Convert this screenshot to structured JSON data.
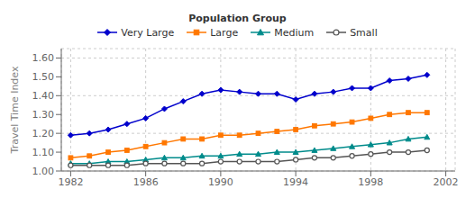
{
  "chart_data": {
    "type": "line",
    "ylabel": "Travel Time Index",
    "legend_title": "Population Group",
    "legend": "top",
    "grid": true,
    "x": [
      1982,
      1983,
      1984,
      1985,
      1986,
      1987,
      1988,
      1989,
      1990,
      1991,
      1992,
      1993,
      1994,
      1995,
      1996,
      1997,
      1998,
      1999,
      2000,
      2001
    ],
    "series": [
      {
        "name": "Very Large",
        "color": "#0000CC",
        "marker": "diamond",
        "values": [
          1.19,
          1.2,
          1.22,
          1.25,
          1.28,
          1.33,
          1.37,
          1.41,
          1.43,
          1.42,
          1.41,
          1.41,
          1.38,
          1.41,
          1.42,
          1.44,
          1.44,
          1.48,
          1.49,
          1.51
        ]
      },
      {
        "name": "Large",
        "color": "#FF7700",
        "marker": "square",
        "values": [
          1.07,
          1.08,
          1.1,
          1.11,
          1.13,
          1.15,
          1.17,
          1.17,
          1.19,
          1.19,
          1.2,
          1.21,
          1.22,
          1.24,
          1.25,
          1.26,
          1.28,
          1.3,
          1.31,
          1.31
        ]
      },
      {
        "name": "Medium",
        "color": "#008B8B",
        "marker": "triangle",
        "values": [
          1.04,
          1.04,
          1.05,
          1.05,
          1.06,
          1.07,
          1.07,
          1.08,
          1.08,
          1.09,
          1.09,
          1.1,
          1.1,
          1.11,
          1.12,
          1.13,
          1.14,
          1.15,
          1.17,
          1.18
        ]
      },
      {
        "name": "Small",
        "color": "#555555",
        "marker": "circle",
        "values": [
          1.03,
          1.03,
          1.03,
          1.03,
          1.04,
          1.04,
          1.04,
          1.04,
          1.05,
          1.05,
          1.05,
          1.05,
          1.06,
          1.07,
          1.07,
          1.08,
          1.09,
          1.1,
          1.1,
          1.11
        ]
      }
    ],
    "xlim": [
      1981.5,
      2002.5
    ],
    "xticks": [
      1982,
      1986,
      1990,
      1994,
      1998,
      2002
    ],
    "ylim": [
      1.0,
      1.65
    ],
    "yticks": [
      {
        "value": 1.0,
        "label": "1.00"
      },
      {
        "value": 1.1,
        "label": "1.10"
      },
      {
        "value": 1.2,
        "label": "1.20"
      },
      {
        "value": 1.3,
        "label": "1.30"
      },
      {
        "value": 1.4,
        "label": "1.40"
      },
      {
        "value": 1.5,
        "label": "1.50"
      },
      {
        "value": 1.6,
        "label": "1.60"
      }
    ]
  }
}
